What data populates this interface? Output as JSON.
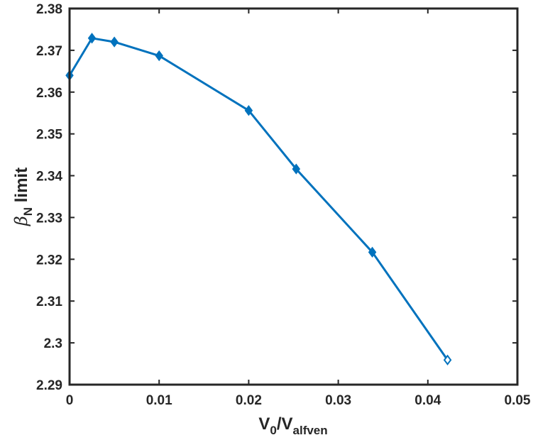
{
  "chart_data": {
    "type": "line",
    "title": "",
    "xlabel": {
      "main": "V",
      "sub1": "0",
      "slash": "/V",
      "sub2": "alfven"
    },
    "ylabel": {
      "symbol": "β",
      "sub": "N",
      "rest": " limit"
    },
    "xlim": [
      0,
      0.05
    ],
    "ylim": [
      2.29,
      2.38
    ],
    "xticks": [
      0,
      0.01,
      0.02,
      0.03,
      0.04,
      0.05
    ],
    "xtick_labels": [
      "0",
      "0.01",
      "0.02",
      "0.03",
      "0.04",
      "0.05"
    ],
    "yticks": [
      2.29,
      2.3,
      2.31,
      2.32,
      2.33,
      2.34,
      2.35,
      2.36,
      2.37,
      2.38
    ],
    "ytick_labels": [
      "2.29",
      "2.3",
      "2.31",
      "2.32",
      "2.33",
      "2.34",
      "2.35",
      "2.36",
      "2.37",
      "2.38"
    ],
    "grid": false,
    "legend": null,
    "series": [
      {
        "color": "#0072BD",
        "marker": "diamond",
        "x": [
          0,
          0.0025,
          0.005,
          0.01,
          0.02,
          0.0253,
          0.0338,
          0.0422
        ],
        "y": [
          2.364,
          2.3729,
          2.372,
          2.3687,
          2.3556,
          2.3416,
          2.3217,
          2.2959
        ]
      }
    ]
  }
}
